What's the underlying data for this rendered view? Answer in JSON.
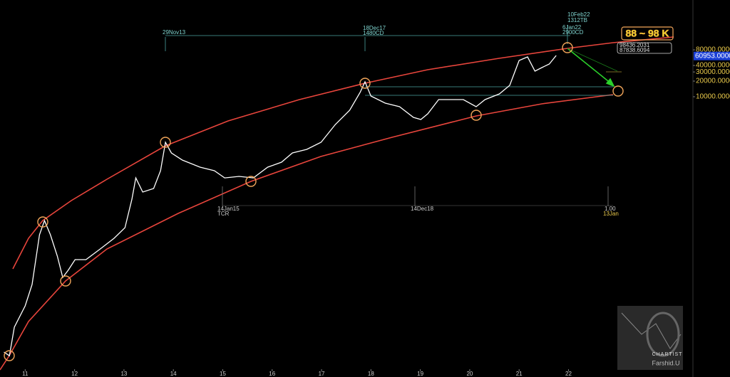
{
  "chart_data": {
    "type": "line",
    "log_y": true,
    "color": "#ffffff",
    "x": [
      2010.57,
      2010.68,
      2010.78,
      2011.0,
      2011.14,
      2011.29,
      2011.39,
      2011.51,
      2011.65,
      2011.76,
      2011.87,
      2012.01,
      2012.23,
      2012.52,
      2012.8,
      2013.02,
      2013.16,
      2013.24,
      2013.38,
      2013.6,
      2013.74,
      2013.84,
      2013.96,
      2014.18,
      2014.54,
      2014.83,
      2015.04,
      2015.33,
      2015.62,
      2015.91,
      2016.19,
      2016.41,
      2016.7,
      2016.99,
      2017.28,
      2017.57,
      2017.78,
      2017.88,
      2018.0,
      2018.29,
      2018.58,
      2018.86,
      2019.01,
      2019.15,
      2019.37,
      2019.59,
      2019.87,
      2020.13,
      2020.31,
      2020.6,
      2020.81,
      2021.0,
      2021.17,
      2021.32,
      2021.46,
      2021.61,
      2021.75
    ],
    "values": [
      0.121,
      0.103,
      0.365,
      0.94,
      2.42,
      22.0,
      41.3,
      22.0,
      8.55,
      3.32,
      4.55,
      7.29,
      7.29,
      11.7,
      18.8,
      30.1,
      106,
      274,
      146,
      171,
      376,
      1328,
      828,
      604,
      441,
      376,
      274,
      292,
      274,
      441,
      549,
      828,
      969,
      1328,
      2924,
      5495,
      12080,
      19400,
      10320,
      7530,
      6430,
      4010,
      3650,
      4690,
      8810,
      8810,
      8810,
      6430,
      8810,
      11350,
      16560,
      50000,
      58480,
      31130,
      36470,
      42660,
      62370
    ],
    "xlim": [
      2010.49,
      2024.49
    ],
    "ylim": [
      0.055,
      729000
    ],
    "xticks": [
      {
        "value": 2011,
        "label": "11"
      },
      {
        "value": 2012,
        "label": "12"
      },
      {
        "value": 2013,
        "label": "13"
      },
      {
        "value": 2014,
        "label": "14"
      },
      {
        "value": 2015,
        "label": "15"
      },
      {
        "value": 2016,
        "label": "16"
      },
      {
        "value": 2017,
        "label": "17"
      },
      {
        "value": 2018,
        "label": "18"
      },
      {
        "value": 2019,
        "label": "19"
      },
      {
        "value": 2020,
        "label": "20"
      },
      {
        "value": 2021,
        "label": "21"
      },
      {
        "value": 2022,
        "label": "22"
      }
    ],
    "yticks": [
      {
        "value": 80000,
        "label": "80000.0000"
      },
      {
        "value": 40000,
        "label": "40000.0000"
      },
      {
        "value": 30000,
        "label": "30000.0000"
      },
      {
        "value": 20000,
        "label": "20000.0000"
      },
      {
        "value": 10000,
        "label": "10000.0000"
      }
    ],
    "last_price": {
      "value": 60953,
      "label": "60953.0000"
    },
    "annotations": [
      "29Nov13",
      "18Dec17",
      "1480CD",
      "10Feb22",
      "1312TB",
      "6Jan22",
      "2900CD",
      "14Jan15",
      "TCR",
      "14Dec18",
      "1.00",
      "13Jan",
      "88 ~ 98 K",
      "98436.2031",
      "87838.6094"
    ],
    "watermark": [
      "CHARTIST",
      "Farshid.U"
    ]
  }
}
